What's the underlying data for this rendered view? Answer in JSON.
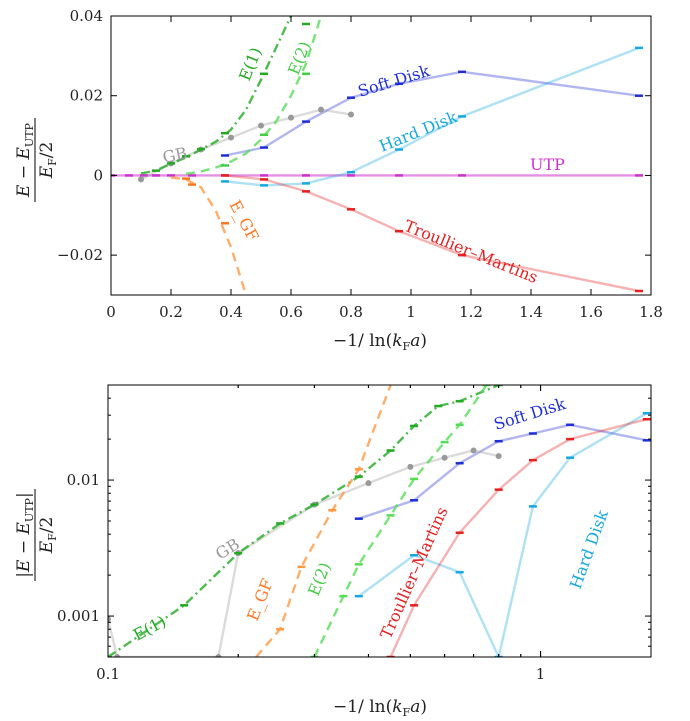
{
  "chart_data": [
    {
      "type": "line",
      "xlabel": "−1/ln(k_Fa)",
      "ylabel": "(E − E_UTP)/(E_F/2)",
      "xlim": [
        0,
        1.8
      ],
      "ylim": [
        -0.03,
        0.04
      ],
      "xticks": [
        "0",
        "0.2",
        "0.4",
        "0.6",
        "0.8",
        "1",
        "1.2",
        "1.4",
        "1.6",
        "1.8"
      ],
      "yticks": [
        "−0.02",
        "0",
        "0.02",
        "0.04"
      ],
      "grid": false,
      "series": [
        {
          "name": "UTP",
          "color": "#cc33cc",
          "kind": "line",
          "x": [
            0,
            0.06,
            0.11,
            0.15,
            0.2,
            0.27,
            0.38,
            0.51,
            0.65,
            0.8,
            0.96,
            1.17,
            1.76
          ],
          "y": [
            0,
            0,
            0,
            0,
            0,
            0,
            0,
            0,
            0,
            0,
            0,
            0,
            0
          ]
        },
        {
          "name": "Soft Disk",
          "color": "#1f2fd6",
          "kind": "line",
          "x": [
            0.38,
            0.51,
            0.65,
            0.8,
            0.96,
            1.17,
            1.76
          ],
          "y": [
            0.005,
            0.007,
            0.0135,
            0.0195,
            0.023,
            0.026,
            0.02
          ]
        },
        {
          "name": "Hard Disk",
          "color": "#18a8e0",
          "kind": "line",
          "x": [
            0.38,
            0.51,
            0.65,
            0.8,
            0.96,
            1.17,
            1.76
          ],
          "y": [
            -0.0015,
            -0.0025,
            -0.002,
            0.0008,
            0.0065,
            0.0148,
            0.032
          ]
        },
        {
          "name": "Troullier–Martins",
          "color": "#e62020",
          "kind": "line",
          "x": [
            0.38,
            0.51,
            0.65,
            0.8,
            0.96,
            1.17,
            1.76
          ],
          "y": [
            0,
            -0.001,
            -0.004,
            -0.0085,
            -0.014,
            -0.02,
            -0.029
          ]
        },
        {
          "name": "GB",
          "color": "#999999",
          "kind": "line",
          "x": [
            0.1,
            0.2,
            0.3,
            0.4,
            0.5,
            0.6,
            0.7,
            0.8
          ],
          "y": [
            -0.001,
            0.003,
            0.0065,
            0.0095,
            0.0125,
            0.0145,
            0.0165,
            0.0153
          ]
        },
        {
          "name": "E(1)",
          "color": "#22aa22",
          "kind": "dashdot",
          "x": [
            0.1,
            0.15,
            0.2,
            0.25,
            0.3,
            0.35,
            0.4,
            0.45,
            0.5,
            0.55,
            0.6
          ],
          "y": [
            0.0005,
            0.0012,
            0.003,
            0.0045,
            0.0065,
            0.0085,
            0.0115,
            0.0165,
            0.024,
            0.032,
            0.04
          ]
        },
        {
          "name": "E(2)",
          "color": "#55dd55",
          "kind": "dashed",
          "x": [
            0.25,
            0.3,
            0.35,
            0.4,
            0.45,
            0.5,
            0.55,
            0.6,
            0.65,
            0.7
          ],
          "y": [
            0.0004,
            0.001,
            0.002,
            0.0035,
            0.0055,
            0.009,
            0.0135,
            0.02,
            0.028,
            0.04
          ]
        },
        {
          "name": "E_GF",
          "color": "#ff9944",
          "kind": "dashed",
          "x": [
            0.2,
            0.25,
            0.3,
            0.35,
            0.4,
            0.45
          ],
          "y": [
            -0.0005,
            -0.001,
            -0.003,
            -0.009,
            -0.018,
            -0.03
          ]
        },
        {
          "name": "E(1) markers",
          "color": "#22aa22",
          "kind": "markers",
          "x": [
            0.15,
            0.2,
            0.25,
            0.3,
            0.38,
            0.51,
            0.65
          ],
          "y": [
            0.0012,
            0.003,
            0.0048,
            0.0066,
            0.0106,
            0.0255,
            0.038
          ]
        },
        {
          "name": "E(2) markers",
          "color": "#44cc44",
          "kind": "markers",
          "x": [
            0.38,
            0.51,
            0.65
          ],
          "y": [
            0.0025,
            0.0102,
            0.0255
          ]
        },
        {
          "name": "E_GF markers",
          "color": "#ff7722",
          "kind": "markers",
          "x": [
            0.25,
            0.27,
            0.38
          ],
          "y": [
            -0.0008,
            -0.0023,
            -0.012
          ]
        }
      ],
      "labels": {
        "E1": "E(1)",
        "E2": "E(2)",
        "soft": "Soft Disk",
        "hard": "Hard Disk",
        "utp": "UTP",
        "gb": "GB",
        "egf": "E_GF",
        "tm": "Troullier–Martins"
      }
    },
    {
      "type": "line",
      "xscale": "log",
      "yscale": "log",
      "xlabel": "−1/ln(k_Fa)",
      "ylabel": "|E − E_UTP|/(E_F/2)",
      "xlim": [
        0.1,
        1.8
      ],
      "ylim": [
        0.0005,
        0.05
      ],
      "xticks": [
        "0.1",
        "1"
      ],
      "yticks": [
        "0.001",
        "0.01"
      ],
      "grid": false,
      "series": [
        {
          "name": "Soft Disk",
          "color": "#1f2fd6",
          "x": [
            0.38,
            0.51,
            0.65,
            0.8,
            0.96,
            1.17,
            1.76
          ],
          "y": [
            0.0052,
            0.0071,
            0.0133,
            0.0193,
            0.022,
            0.0255,
            0.0196
          ]
        },
        {
          "name": "Hard Disk",
          "color": "#18a8e0",
          "x": [
            0.38,
            0.51,
            0.65,
            0.8,
            0.96,
            1.17,
            1.76
          ],
          "y": [
            0.0014,
            0.0028,
            0.0021,
            0.0005,
            0.0064,
            0.0146,
            0.031
          ]
        },
        {
          "name": "Troullier–Martins",
          "color": "#e62020",
          "x": [
            0.45,
            0.51,
            0.65,
            0.8,
            0.96,
            1.17,
            1.76
          ],
          "y": [
            0.0005,
            0.0012,
            0.0041,
            0.0085,
            0.014,
            0.02,
            0.028
          ]
        },
        {
          "name": "GB",
          "color": "#999999",
          "x": [
            0.1,
            0.105,
            0.18,
            0.2,
            0.3,
            0.4,
            0.5,
            0.6,
            0.7,
            0.8
          ],
          "y": [
            0.00095,
            0.0005,
            0.0005,
            0.0029,
            0.0066,
            0.0095,
            0.0125,
            0.0146,
            0.0165,
            0.015
          ]
        },
        {
          "name": "E(1)",
          "color": "#22aa22",
          "x": [
            0.1,
            0.15,
            0.2,
            0.25,
            0.3,
            0.38,
            0.45,
            0.51,
            0.58,
            0.65,
            0.8
          ],
          "y": [
            0.0005,
            0.0012,
            0.0029,
            0.0048,
            0.0066,
            0.0106,
            0.0165,
            0.025,
            0.035,
            0.038,
            0.05
          ]
        },
        {
          "name": "E(2)",
          "color": "#55dd55",
          "x": [
            0.3,
            0.35,
            0.38,
            0.45,
            0.51,
            0.6,
            0.65,
            0.75
          ],
          "y": [
            0.0005,
            0.0014,
            0.0024,
            0.0055,
            0.0102,
            0.019,
            0.0255,
            0.05
          ]
        },
        {
          "name": "E_GF",
          "color": "#ff9944",
          "x": [
            0.22,
            0.25,
            0.28,
            0.33,
            0.38,
            0.45
          ],
          "y": [
            0.0005,
            0.0008,
            0.0023,
            0.006,
            0.012,
            0.05
          ]
        }
      ],
      "labels": {
        "E1": "E(1)",
        "E2": "E(2)",
        "soft": "Soft Disk",
        "hard": "Hard Disk",
        "gb": "GB",
        "egf": "E_GF",
        "tm": "Troullier–Martins"
      }
    }
  ]
}
